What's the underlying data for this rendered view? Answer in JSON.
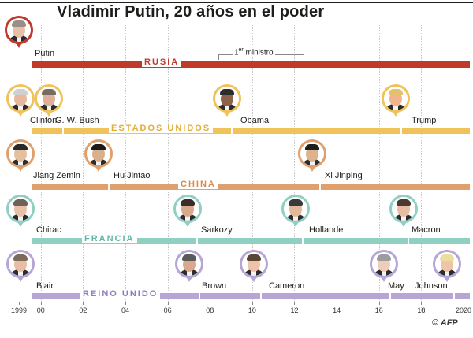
{
  "title": "Vladimir Putin, 20 años en el poder",
  "credit": "© AFP",
  "premier": {
    "label_prefix": "1",
    "label_sup": "er",
    "label_suffix": " ministro",
    "start": 2008.4,
    "end": 2012.4
  },
  "x_axis": {
    "start": 1999.6,
    "end": 2020.3,
    "ticks": [
      {
        "year": 1999,
        "label": "1999"
      },
      {
        "year": 2000,
        "label": "00"
      },
      {
        "year": 2002,
        "label": "02"
      },
      {
        "year": 2004,
        "label": "04"
      },
      {
        "year": 2006,
        "label": "06"
      },
      {
        "year": 2008,
        "label": "08"
      },
      {
        "year": 2010,
        "label": "10"
      },
      {
        "year": 2012,
        "label": "12"
      },
      {
        "year": 2014,
        "label": "14"
      },
      {
        "year": 2016,
        "label": "16"
      },
      {
        "year": 2018,
        "label": "18"
      },
      {
        "year": 2020,
        "label": "2020"
      }
    ]
  },
  "rows": [
    {
      "country": "RUSIA",
      "color": "#c0392b",
      "leaders": [
        {
          "name": "Putin",
          "from": 1999.6,
          "to": 2020.3,
          "icon": "putin-portrait-icon",
          "hair": "#9a8f86",
          "skin": "#e7c0a8"
        }
      ]
    },
    {
      "country": "ESTADOS UNIDOS",
      "color": "#f0c35a",
      "leaders": [
        {
          "name": "Clinton",
          "from": 1999.6,
          "to": 2001.05,
          "icon": "clinton-portrait-icon",
          "hair": "#cfcfcf",
          "skin": "#e6b99c"
        },
        {
          "name": "G. W. Bush",
          "from": 2001.05,
          "to": 2009.05,
          "icon": "bush-portrait-icon",
          "hair": "#7a6b60",
          "skin": "#deb09a"
        },
        {
          "name": "Obama",
          "from": 2009.05,
          "to": 2017.05,
          "icon": "obama-portrait-icon",
          "hair": "#2c2c2c",
          "skin": "#8d6248"
        },
        {
          "name": "Trump",
          "from": 2017.05,
          "to": 2020.3,
          "icon": "trump-portrait-icon",
          "hair": "#e3c070",
          "skin": "#f0b48e"
        }
      ]
    },
    {
      "country": "CHINA",
      "color": "#e0a06e",
      "leaders": [
        {
          "name": "Jiang Zemin",
          "from": 1999.6,
          "to": 2003.2,
          "icon": "jiang-zemin-portrait-icon",
          "hair": "#2a2a2a",
          "skin": "#e4c19e"
        },
        {
          "name": "Hu Jintao",
          "from": 2003.2,
          "to": 2013.2,
          "icon": "hu-jintao-portrait-icon",
          "hair": "#1b1b1b",
          "skin": "#d9b08d"
        },
        {
          "name": "Xi Jinping",
          "from": 2013.2,
          "to": 2020.3,
          "icon": "xi-jinping-portrait-icon",
          "hair": "#1e1e1e",
          "skin": "#ddb38e"
        }
      ]
    },
    {
      "country": "FRANCIA",
      "color": "#8fd0c2",
      "leaders": [
        {
          "name": "Chirac",
          "from": 1999.6,
          "to": 2007.4,
          "icon": "chirac-portrait-icon",
          "hair": "#6f6258",
          "skin": "#e8c2a8"
        },
        {
          "name": "Sarkozy",
          "from": 2007.4,
          "to": 2012.4,
          "icon": "sarkozy-portrait-icon",
          "hair": "#3b2e28",
          "skin": "#d8a98c"
        },
        {
          "name": "Hollande",
          "from": 2012.4,
          "to": 2017.4,
          "icon": "hollande-portrait-icon",
          "hair": "#3a3a3a",
          "skin": "#e4b89a"
        },
        {
          "name": "Macron",
          "from": 2017.4,
          "to": 2020.3,
          "icon": "macron-portrait-icon",
          "hair": "#4a3a30",
          "skin": "#e6bda0"
        }
      ]
    },
    {
      "country": "REINO UNIDO",
      "color": "#b6a6d6",
      "leaders": [
        {
          "name": "Blair",
          "from": 1999.6,
          "to": 2007.5,
          "icon": "blair-portrait-icon",
          "hair": "#7d6a5a",
          "skin": "#e7bea3"
        },
        {
          "name": "Brown",
          "from": 2007.5,
          "to": 2010.4,
          "icon": "brown-portrait-icon",
          "hair": "#5a5a5a",
          "skin": "#d9a98f"
        },
        {
          "name": "Cameron",
          "from": 2010.4,
          "to": 2016.55,
          "icon": "cameron-portrait-icon",
          "hair": "#5a4636",
          "skin": "#edc2a8"
        },
        {
          "name": "May",
          "from": 2016.55,
          "to": 2019.55,
          "icon": "may-portrait-icon",
          "hair": "#9c9c9c",
          "skin": "#efcdb8"
        },
        {
          "name": "Johnson",
          "from": 2019.55,
          "to": 2020.3,
          "icon": "johnson-portrait-icon",
          "hair": "#ecdca0",
          "skin": "#f0c4a8"
        }
      ]
    }
  ]
}
